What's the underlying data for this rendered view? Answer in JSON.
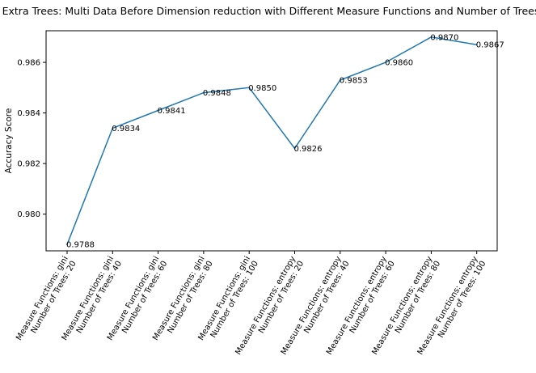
{
  "chart_data": {
    "type": "line",
    "title": "Extra Trees: Multi Data Before Dimension reduction with Different Measure Functions and Number of Trees",
    "xlabel": "",
    "ylabel": "Accuracy Score",
    "categories": [
      [
        "Measure Functions: gini",
        "Number of Trees: 20"
      ],
      [
        "Measure Functions: gini",
        "Number of Trees: 40"
      ],
      [
        "Measure Functions: gini",
        "Number of Trees: 60"
      ],
      [
        "Measure Functions: gini",
        "Number of Trees: 80"
      ],
      [
        "Measure Functions: gini",
        "Number of Trees: 100"
      ],
      [
        "Measure Functions: entropy",
        "Number of Trees: 20"
      ],
      [
        "Measure Functions: entropy",
        "Number of Trees: 40"
      ],
      [
        "Measure Functions: entropy",
        "Number of Trees: 60"
      ],
      [
        "Measure Functions: entropy",
        "Number of Trees: 80"
      ],
      [
        "Measure Functions: entropy",
        "Number of Trees: 100"
      ]
    ],
    "series": [
      {
        "values": [
          0.9788,
          0.9834,
          0.9841,
          0.9848,
          0.985,
          0.9826,
          0.9853,
          0.986,
          0.987,
          0.9867
        ],
        "labels": [
          "0.9788",
          "0.9834",
          "0.9841",
          "0.9848",
          "0.9850",
          "0.9826",
          "0.9853",
          "0.9860",
          "0.9870",
          "0.9867"
        ],
        "color": "#1f77b4"
      }
    ],
    "ylim": [
      0.97855,
      0.98725
    ],
    "yticks": [
      0.98,
      0.982,
      0.984,
      0.986
    ],
    "ytick_labels": [
      "0.980",
      "0.982",
      "0.984",
      "0.986"
    ],
    "grid": false,
    "legend": "none"
  }
}
